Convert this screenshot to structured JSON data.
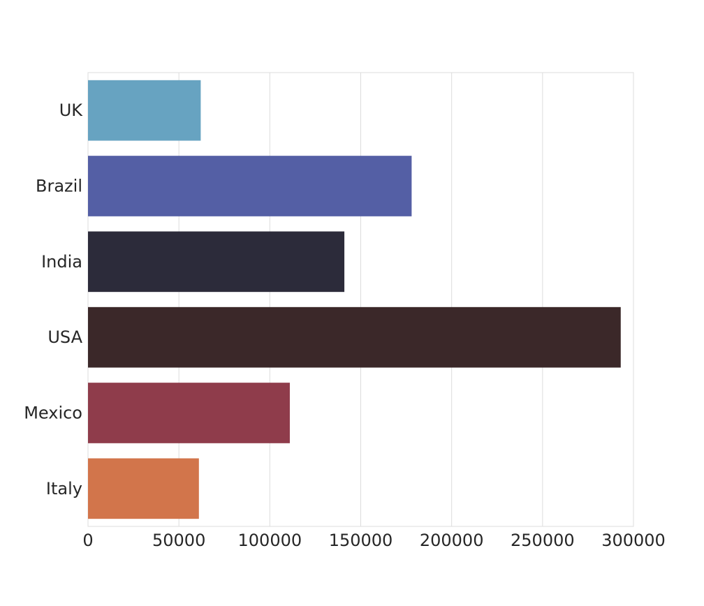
{
  "chart_data": {
    "type": "bar",
    "orientation": "horizontal",
    "categories": [
      "UK",
      "Brazil",
      "India",
      "USA",
      "Mexico",
      "Italy"
    ],
    "values": [
      62000,
      178000,
      141000,
      293000,
      111000,
      61000
    ],
    "colors": [
      "#67a3c1",
      "#545fa5",
      "#2c2b3a",
      "#3b2829",
      "#8f3c4b",
      "#d2754b"
    ],
    "xlim": [
      0,
      300000
    ],
    "x_ticks": [
      0,
      50000,
      100000,
      150000,
      200000,
      250000,
      300000
    ],
    "x_tick_labels": [
      "0",
      "50000",
      "100000",
      "150000",
      "200000",
      "250000",
      "300000"
    ],
    "title": "",
    "xlabel": "",
    "ylabel": "",
    "grid": "vertical"
  }
}
